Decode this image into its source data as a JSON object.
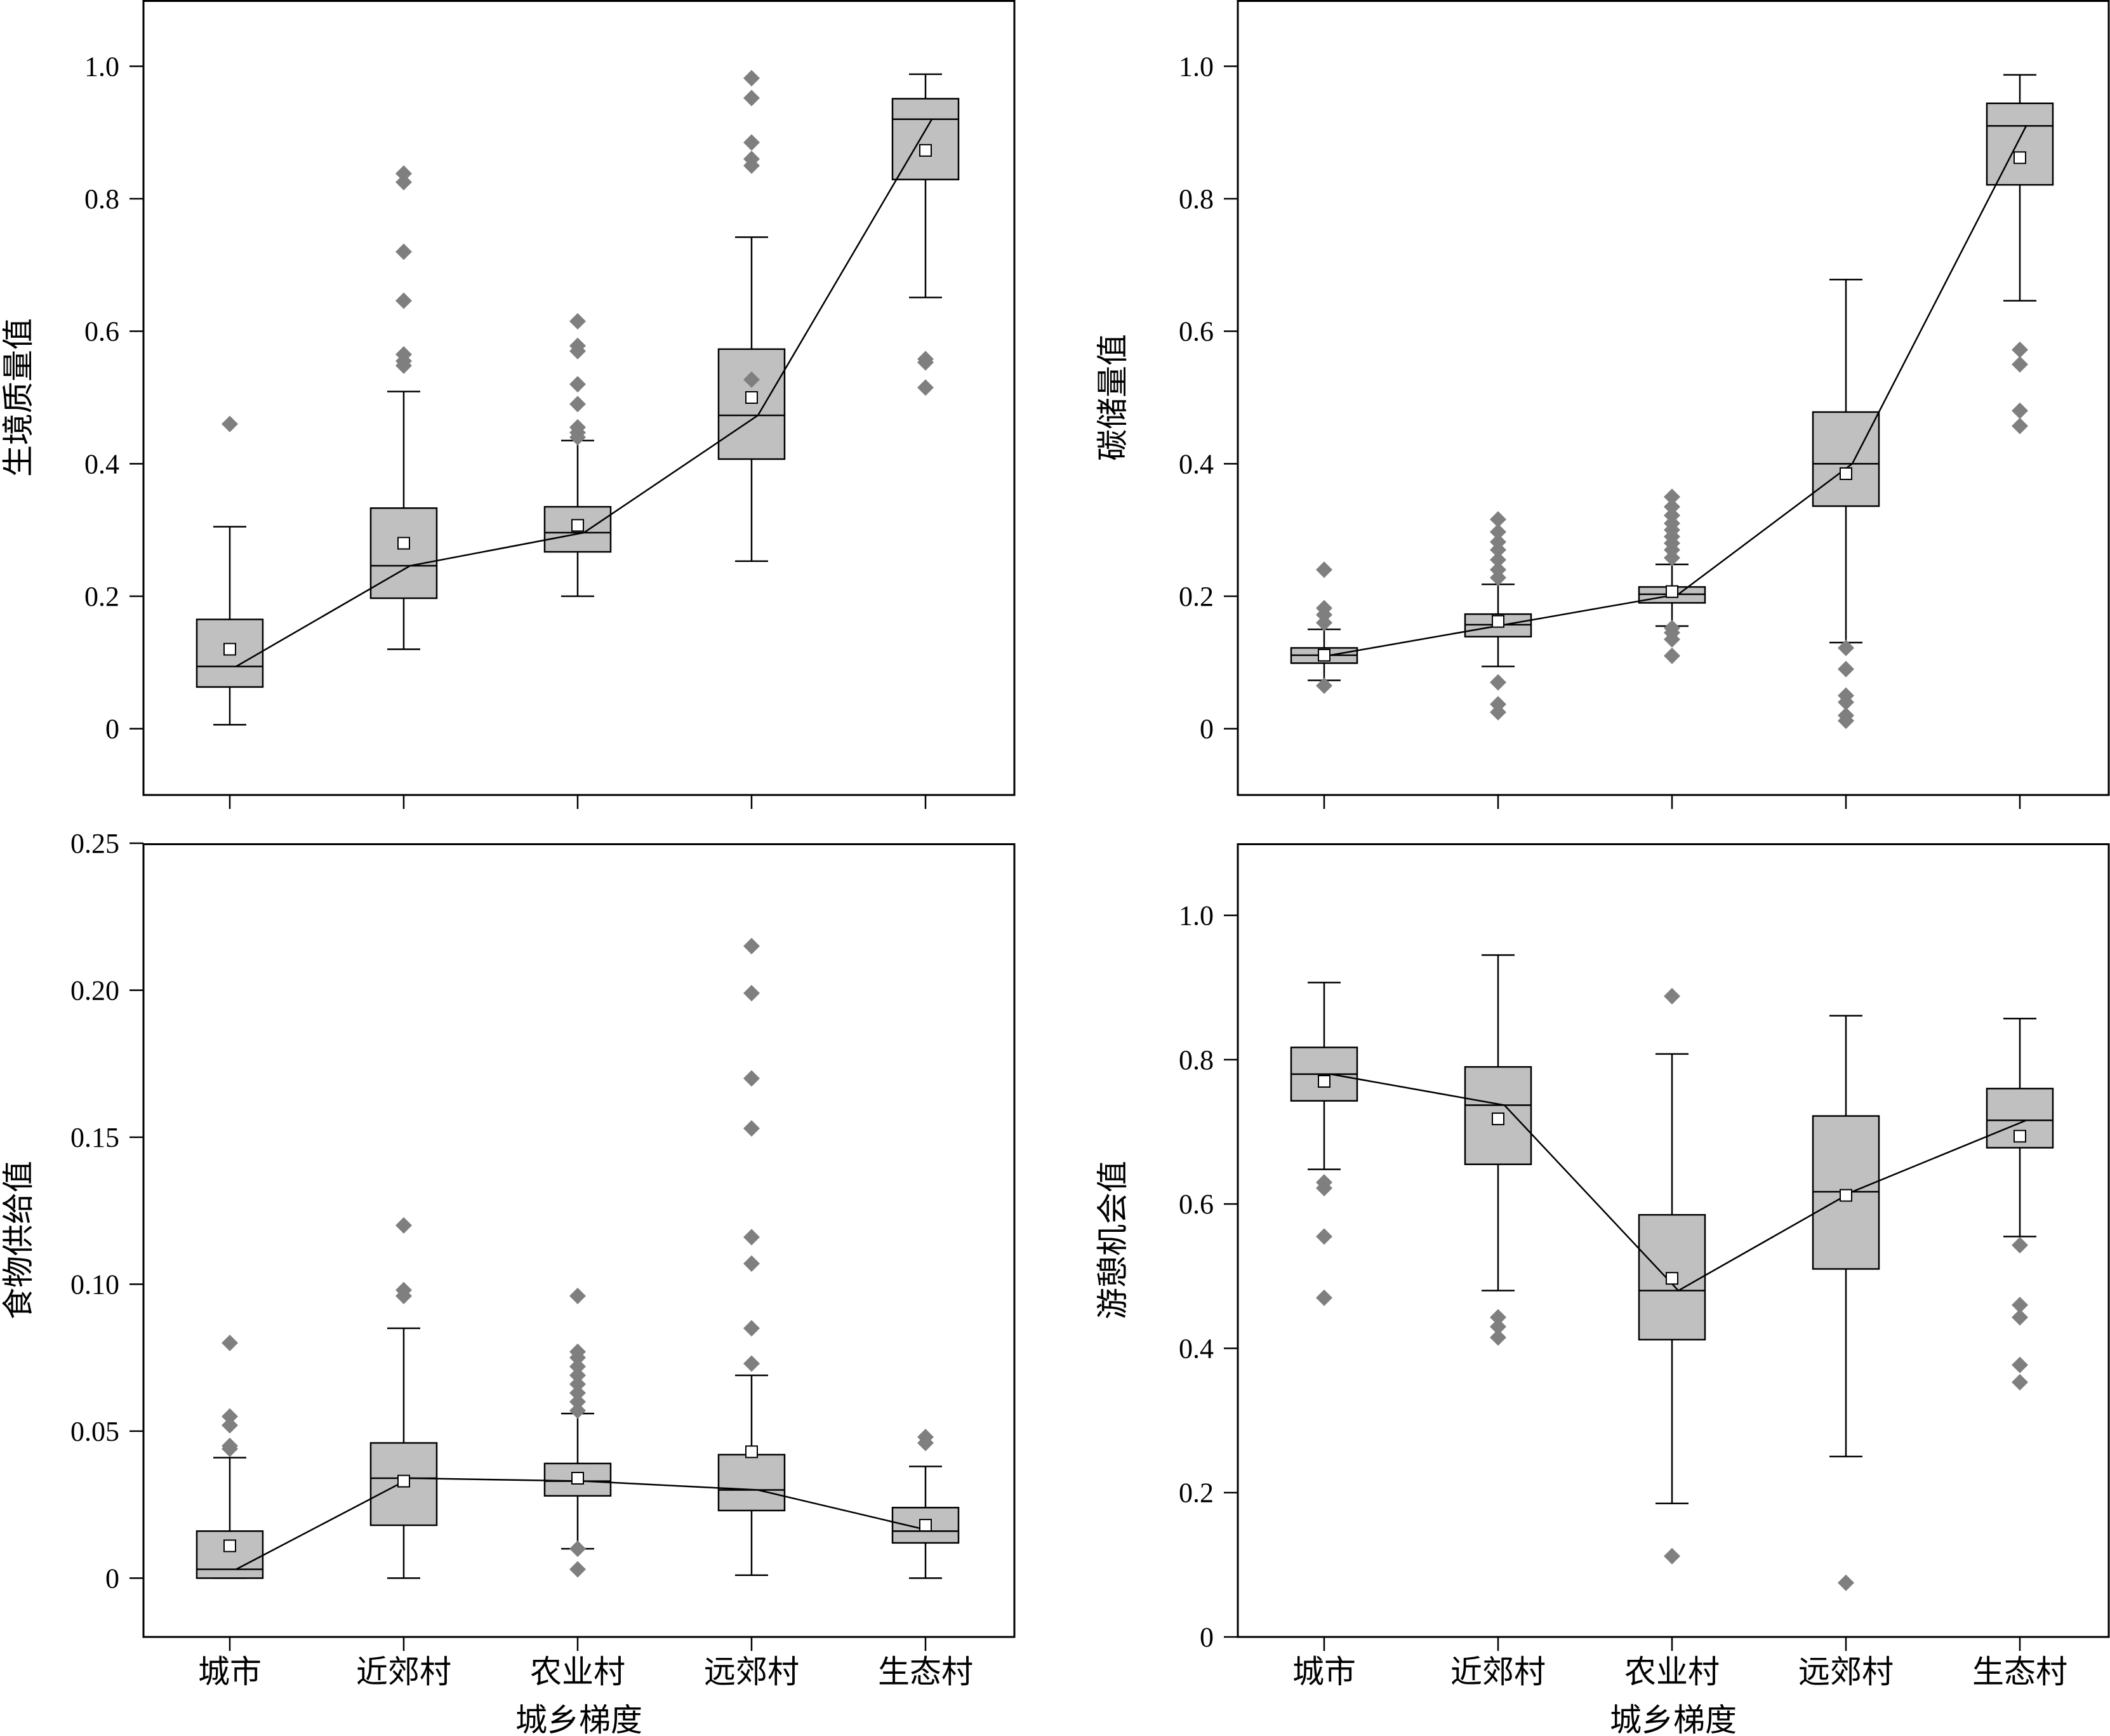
{
  "figure": {
    "xlabel": "城乡梯度",
    "categories": [
      "城市",
      "近郊村",
      "农业村",
      "远郊村",
      "生态村"
    ],
    "colors": {
      "box_fill": "#c0c0c0",
      "outlier": "#7f7f7f",
      "line": "#000000",
      "frame": "#000000"
    }
  },
  "chart_data": [
    {
      "type": "box",
      "ylabel": "生境质量值",
      "ylim": [
        -0.1,
        1.1
      ],
      "yticks": [
        0,
        0.2,
        0.4,
        0.6,
        0.8,
        1.0
      ],
      "ytick_labels": [
        "0",
        "0.2",
        "0.4",
        "0.6",
        "0.8",
        "1.0"
      ],
      "show_x_labels": false,
      "categories": [
        "城市",
        "近郊村",
        "农业村",
        "远郊村",
        "生态村"
      ],
      "boxes": [
        {
          "whisker_low": 0.006,
          "q1": 0.063,
          "median": 0.094,
          "q3": 0.165,
          "whisker_high": 0.305,
          "mean": 0.12,
          "outliers": [
            0.46
          ]
        },
        {
          "whisker_low": 0.12,
          "q1": 0.197,
          "median": 0.246,
          "q3": 0.333,
          "whisker_high": 0.509,
          "mean": 0.28,
          "outliers": [
            0.548,
            0.555,
            0.565,
            0.646,
            0.72,
            0.825,
            0.838
          ]
        },
        {
          "whisker_low": 0.2,
          "q1": 0.267,
          "median": 0.296,
          "q3": 0.335,
          "whisker_high": 0.435,
          "mean": 0.307,
          "outliers": [
            0.44,
            0.447,
            0.455,
            0.49,
            0.52,
            0.57,
            0.578,
            0.615
          ]
        },
        {
          "whisker_low": 0.253,
          "q1": 0.407,
          "median": 0.473,
          "q3": 0.573,
          "whisker_high": 0.742,
          "mean": 0.5,
          "outliers": [
            0.527,
            0.85,
            0.86,
            0.885,
            0.952,
            0.982
          ]
        },
        {
          "whisker_low": 0.651,
          "q1": 0.829,
          "median": 0.92,
          "q3": 0.951,
          "whisker_high": 0.988,
          "mean": 0.873,
          "outliers": [
            0.515,
            0.553,
            0.558
          ]
        }
      ],
      "trend": [
        0.094,
        0.246,
        0.296,
        0.473,
        0.92
      ]
    },
    {
      "type": "box",
      "ylabel": "碳储量值",
      "ylim": [
        -0.1,
        1.1
      ],
      "yticks": [
        0,
        0.2,
        0.4,
        0.6,
        0.8,
        1.0
      ],
      "ytick_labels": [
        "0",
        "0.2",
        "0.4",
        "0.6",
        "0.8",
        "1.0"
      ],
      "show_x_labels": false,
      "categories": [
        "城市",
        "近郊村",
        "农业村",
        "远郊村",
        "生态村"
      ],
      "boxes": [
        {
          "whisker_low": 0.073,
          "q1": 0.099,
          "median": 0.111,
          "q3": 0.122,
          "whisker_high": 0.15,
          "mean": 0.111,
          "outliers": [
            0.065,
            0.16,
            0.172,
            0.182,
            0.24
          ]
        },
        {
          "whisker_low": 0.094,
          "q1": 0.139,
          "median": 0.157,
          "q3": 0.173,
          "whisker_high": 0.218,
          "mean": 0.162,
          "outliers": [
            0.025,
            0.037,
            0.07,
            0.228,
            0.24,
            0.255,
            0.27,
            0.282,
            0.297,
            0.316
          ]
        },
        {
          "whisker_low": 0.155,
          "q1": 0.19,
          "median": 0.203,
          "q3": 0.214,
          "whisker_high": 0.248,
          "mean": 0.207,
          "outliers": [
            0.11,
            0.135,
            0.145,
            0.152,
            0.258,
            0.27,
            0.28,
            0.29,
            0.3,
            0.31,
            0.322,
            0.335,
            0.35
          ]
        },
        {
          "whisker_low": 0.13,
          "q1": 0.336,
          "median": 0.4,
          "q3": 0.478,
          "whisker_high": 0.678,
          "mean": 0.385,
          "outliers": [
            0.012,
            0.02,
            0.04,
            0.05,
            0.09,
            0.122
          ]
        },
        {
          "whisker_low": 0.646,
          "q1": 0.821,
          "median": 0.91,
          "q3": 0.944,
          "whisker_high": 0.987,
          "mean": 0.862,
          "outliers": [
            0.457,
            0.48,
            0.55,
            0.572
          ]
        }
      ],
      "trend": [
        0.111,
        0.157,
        0.203,
        0.4,
        0.91
      ]
    },
    {
      "type": "box",
      "ylabel": "食物供给值",
      "ylim": [
        -0.02,
        0.25
      ],
      "yticks": [
        0,
        0.05,
        0.1,
        0.15,
        0.2,
        0.25
      ],
      "ytick_labels": [
        "0",
        "0.05",
        "0.10",
        "0.15",
        "0.20",
        "0.25"
      ],
      "show_x_labels": true,
      "categories": [
        "城市",
        "近郊村",
        "农业村",
        "远郊村",
        "生态村"
      ],
      "boxes": [
        {
          "whisker_low": 0.0,
          "q1": 0.0,
          "median": 0.003,
          "q3": 0.016,
          "whisker_high": 0.041,
          "mean": 0.011,
          "outliers": [
            0.044,
            0.045,
            0.052,
            0.055,
            0.08
          ]
        },
        {
          "whisker_low": 0.0,
          "q1": 0.018,
          "median": 0.034,
          "q3": 0.046,
          "whisker_high": 0.085,
          "mean": 0.033,
          "outliers": [
            0.096,
            0.098,
            0.12
          ]
        },
        {
          "whisker_low": 0.01,
          "q1": 0.028,
          "median": 0.033,
          "q3": 0.039,
          "whisker_high": 0.056,
          "mean": 0.034,
          "outliers": [
            0.003,
            0.01,
            0.057,
            0.06,
            0.063,
            0.066,
            0.069,
            0.072,
            0.075,
            0.077,
            0.096
          ]
        },
        {
          "whisker_low": 0.001,
          "q1": 0.023,
          "median": 0.03,
          "q3": 0.042,
          "whisker_high": 0.069,
          "mean": 0.043,
          "outliers": [
            0.073,
            0.085,
            0.107,
            0.116,
            0.153,
            0.17,
            0.199,
            0.215
          ]
        },
        {
          "whisker_low": 0.0,
          "q1": 0.012,
          "median": 0.016,
          "q3": 0.024,
          "whisker_high": 0.038,
          "mean": 0.018,
          "outliers": [
            0.046,
            0.048
          ]
        }
      ],
      "trend": [
        0.003,
        0.034,
        0.033,
        0.03,
        0.016
      ]
    },
    {
      "type": "box",
      "ylabel": "游憩机会值",
      "ylim": [
        0,
        1.1
      ],
      "yticks": [
        0,
        0.2,
        0.4,
        0.6,
        0.8,
        1.0
      ],
      "ytick_labels": [
        "0",
        "0.2",
        "0.4",
        "0.6",
        "0.8",
        "1.0"
      ],
      "show_x_labels": true,
      "categories": [
        "城市",
        "近郊村",
        "农业村",
        "远郊村",
        "生态村"
      ],
      "boxes": [
        {
          "whisker_low": 0.648,
          "q1": 0.743,
          "median": 0.78,
          "q3": 0.817,
          "whisker_high": 0.907,
          "mean": 0.77,
          "outliers": [
            0.47,
            0.555,
            0.622,
            0.63
          ]
        },
        {
          "whisker_low": 0.48,
          "q1": 0.655,
          "median": 0.737,
          "q3": 0.79,
          "whisker_high": 0.945,
          "mean": 0.718,
          "outliers": [
            0.415,
            0.43,
            0.443
          ]
        },
        {
          "whisker_low": 0.185,
          "q1": 0.412,
          "median": 0.48,
          "q3": 0.585,
          "whisker_high": 0.808,
          "mean": 0.497,
          "outliers": [
            0.112,
            0.888
          ]
        },
        {
          "whisker_low": 0.25,
          "q1": 0.51,
          "median": 0.617,
          "q3": 0.722,
          "whisker_high": 0.861,
          "mean": 0.612,
          "outliers": [
            0.075
          ]
        },
        {
          "whisker_low": 0.555,
          "q1": 0.678,
          "median": 0.716,
          "q3": 0.76,
          "whisker_high": 0.857,
          "mean": 0.694,
          "outliers": [
            0.353,
            0.377,
            0.443,
            0.46,
            0.543
          ]
        }
      ],
      "trend": [
        0.78,
        0.737,
        0.48,
        0.617,
        0.716
      ]
    }
  ]
}
